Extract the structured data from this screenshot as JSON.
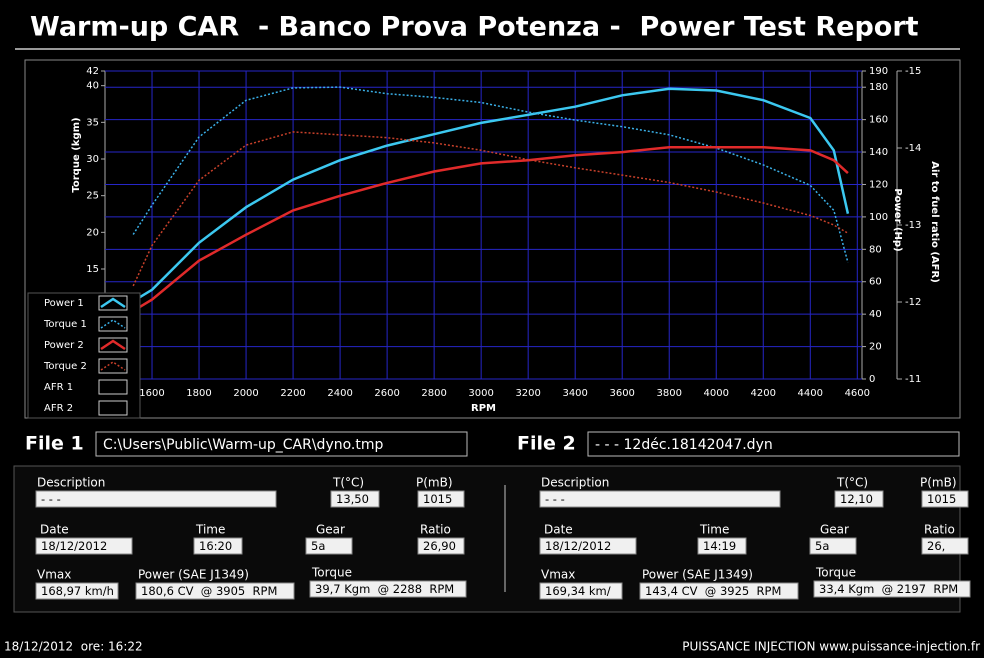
{
  "header": {
    "title": "Warm-up CAR  - Banco Prova Potenza -  Power Test Report"
  },
  "chart_data": {
    "type": "line",
    "x_label": "RPM",
    "y_label": "Torque (kgm)",
    "y2_label": "Power (Hp)",
    "y3_label": "Air to fuel ratio (AFR)",
    "x": [
      1520,
      1600,
      1800,
      2000,
      2200,
      2400,
      2600,
      2800,
      3000,
      3200,
      3400,
      3600,
      3800,
      4000,
      4200,
      4400,
      4500,
      4560
    ],
    "xlim": [
      1400,
      4620
    ],
    "xticks": [
      1600,
      1800,
      2000,
      2200,
      2400,
      2600,
      2800,
      3000,
      3200,
      3400,
      3600,
      3800,
      4000,
      4200,
      4400,
      4600
    ],
    "ylim": [
      0,
      42
    ],
    "yticks": [
      15,
      20,
      25,
      30,
      35,
      40,
      42
    ],
    "y2lim": [
      0,
      190
    ],
    "y2ticks": [
      0,
      20,
      40,
      60,
      80,
      100,
      120,
      140,
      160,
      180,
      190
    ],
    "y3lim": [
      -11,
      -15
    ],
    "y3ticks": [
      -11,
      -12,
      -13,
      -14,
      -15
    ],
    "grid": true,
    "series": [
      {
        "name": "Power 1",
        "color": "#3cc8f0",
        "axis": "y2",
        "values": [
          48,
          55,
          84,
          106,
          123,
          135,
          144,
          151,
          158,
          163,
          168,
          175,
          179,
          178,
          172,
          161,
          141,
          102
        ]
      },
      {
        "name": "Torque 1",
        "color": "#3ab0e8",
        "dash": true,
        "values": [
          19.7,
          23.7,
          33,
          38,
          39.7,
          39.8,
          38.9,
          38.4,
          37.7,
          36.4,
          35.3,
          34.4,
          33.3,
          31.5,
          29.2,
          26.4,
          23,
          15.9
        ]
      },
      {
        "name": "Power 2",
        "color": "#e02a2a",
        "axis": "y2",
        "values": [
          42,
          49,
          73,
          89,
          104,
          113,
          121,
          128,
          133,
          135,
          138,
          140,
          143,
          143,
          143,
          141,
          135,
          127
        ]
      },
      {
        "name": "Torque 2",
        "color": "#c8402a",
        "dash": true,
        "values": [
          12.7,
          18.2,
          27.1,
          31.9,
          33.7,
          33.3,
          32.9,
          32.2,
          31.2,
          29.9,
          28.8,
          27.8,
          26.8,
          25.5,
          24,
          22.3,
          21,
          19.9
        ]
      },
      {
        "name": "AFR 1",
        "axis": "y3",
        "values": [
          null,
          null,
          null,
          null,
          null,
          null,
          null,
          null,
          null,
          null,
          null,
          null,
          null,
          null,
          null,
          null,
          null,
          null
        ]
      },
      {
        "name": "AFR 2",
        "axis": "y3",
        "values": [
          null,
          null,
          null,
          null,
          null,
          null,
          null,
          null,
          null,
          null,
          null,
          null,
          null,
          null,
          null,
          null,
          null,
          null
        ]
      }
    ]
  },
  "files": [
    {
      "label": "File 1",
      "path": "C:\\Users\\Public\\Warm-up_CAR\\dyno.tmp"
    },
    {
      "label": "File 2",
      "path": "- - - 12déc.18142047.dyn"
    }
  ],
  "panels": [
    {
      "fields": [
        {
          "label": "Description",
          "value": "- - -"
        },
        {
          "label": "T(°C)",
          "value": "13,50"
        },
        {
          "label": "P(mB)",
          "value": "1015"
        },
        {
          "label": "Date",
          "value": "18/12/2012"
        },
        {
          "label": "Time",
          "value": "16:20"
        },
        {
          "label": "Gear",
          "value": "5a"
        },
        {
          "label": "Ratio",
          "value": "26,90"
        },
        {
          "label": "Vmax",
          "value": "168,97 km/h"
        },
        {
          "label": "Power (SAE J1349)",
          "value": "180,6 CV  @ 3905  RPM"
        },
        {
          "label": "Torque",
          "value": "39,7 Kgm  @ 2288  RPM"
        }
      ]
    },
    {
      "fields": [
        {
          "label": "Description",
          "value": "- - -"
        },
        {
          "label": "T(°C)",
          "value": "12,10"
        },
        {
          "label": "P(mB)",
          "value": "1015"
        },
        {
          "label": "Date",
          "value": "18/12/2012"
        },
        {
          "label": "Time",
          "value": "14:19"
        },
        {
          "label": "Gear",
          "value": "5a"
        },
        {
          "label": "Ratio",
          "value": "26,"
        },
        {
          "label": "Vmax",
          "value": "169,34 km/"
        },
        {
          "label": "Power (SAE J1349)",
          "value": "143,4 CV  @ 3925  RPM"
        },
        {
          "label": "Torque",
          "value": "33,4 Kgm  @ 2197  RPM"
        }
      ]
    }
  ],
  "footer": {
    "left": "18/12/2012  ore: 16:22",
    "right": "PUISSANCE INJECTION www.puissance-injection.fr"
  }
}
